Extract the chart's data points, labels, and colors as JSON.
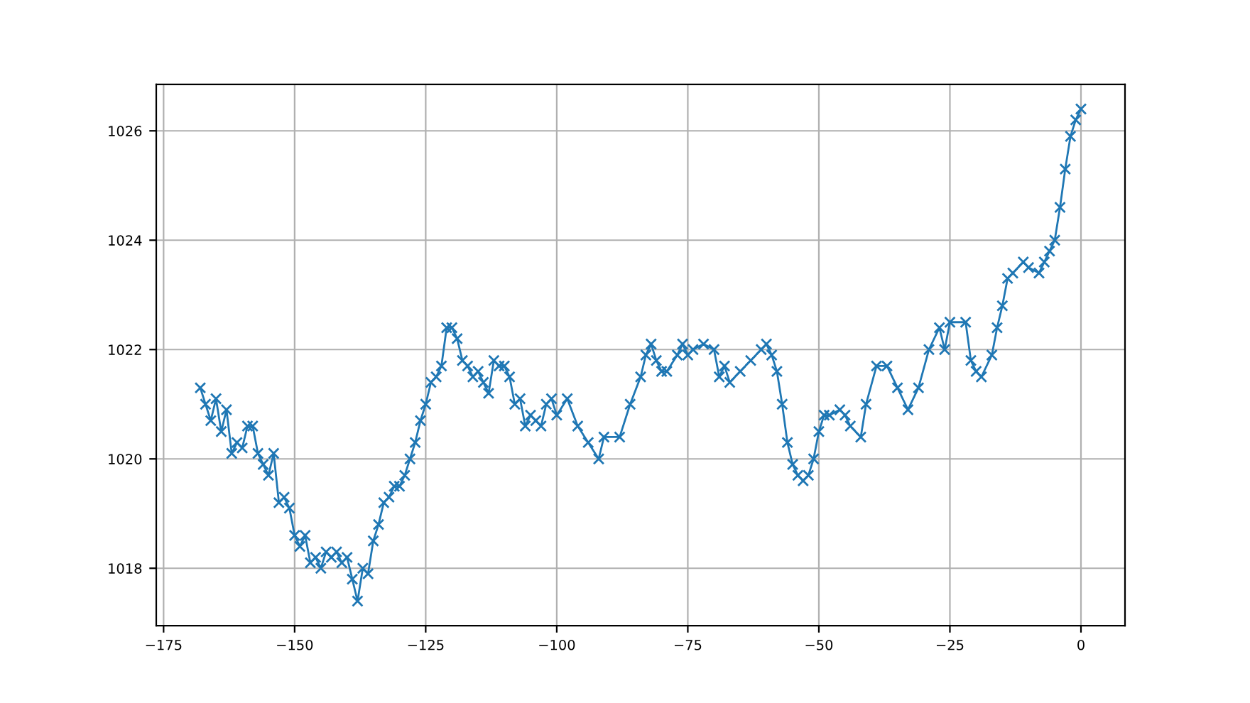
{
  "chart_data": {
    "type": "line",
    "series": [
      {
        "color": "#1f77b4",
        "x": [
          -168,
          -167,
          -166,
          -165,
          -164,
          -163,
          -162,
          -161,
          -160,
          -159,
          -158,
          -157,
          -156,
          -155,
          -154,
          -153,
          -152,
          -151,
          -150,
          -149,
          -148,
          -147,
          -146,
          -145,
          -144,
          -143,
          -142,
          -141,
          -140,
          -139,
          -138,
          -137,
          -136,
          -135,
          -134,
          -133,
          -132,
          -131,
          -130,
          -129,
          -128,
          -127,
          -126,
          -125,
          -124,
          -123,
          -122,
          -121,
          -120,
          -119,
          -118,
          -117,
          -116,
          -115,
          -114,
          -113,
          -112,
          -111,
          -110,
          -109,
          -108,
          -107,
          -106,
          -105,
          -104,
          -103,
          -102,
          -101,
          -100,
          -98,
          -96,
          -94,
          -92,
          -91,
          -88,
          -86,
          -84,
          -83,
          -82,
          -81,
          -80,
          -79,
          -77,
          -76,
          -75,
          -74,
          -72,
          -70,
          -69,
          -68,
          -67,
          -65,
          -63,
          -61,
          -60,
          -59,
          -58,
          -57,
          -56,
          -55,
          -54,
          -53,
          -52,
          -51,
          -50,
          -49,
          -48,
          -46,
          -45,
          -44,
          -42,
          -41,
          -39,
          -37,
          -35,
          -33,
          -31,
          -29,
          -27,
          -26,
          -25,
          -22,
          -21,
          -20,
          -19,
          -17,
          -16,
          -15,
          -14,
          -13,
          -11,
          -10,
          -8,
          -7,
          -6,
          -5,
          -4,
          -3,
          -2,
          -1,
          0
        ],
        "values": [
          1021.3,
          1021.0,
          1020.7,
          1021.1,
          1020.5,
          1020.9,
          1020.1,
          1020.3,
          1020.2,
          1020.6,
          1020.6,
          1020.1,
          1019.9,
          1019.7,
          1020.1,
          1019.2,
          1019.3,
          1019.1,
          1018.6,
          1018.4,
          1018.6,
          1018.1,
          1018.2,
          1018.0,
          1018.3,
          1018.2,
          1018.3,
          1018.1,
          1018.2,
          1017.8,
          1017.4,
          1018.0,
          1017.9,
          1018.5,
          1018.8,
          1019.2,
          1019.3,
          1019.5,
          1019.5,
          1019.7,
          1020.0,
          1020.3,
          1020.7,
          1021.0,
          1021.4,
          1021.5,
          1021.7,
          1022.4,
          1022.4,
          1022.2,
          1021.8,
          1021.7,
          1021.5,
          1021.6,
          1021.4,
          1021.2,
          1021.8,
          1021.7,
          1021.7,
          1021.5,
          1021.0,
          1021.1,
          1020.6,
          1020.8,
          1020.7,
          1020.6,
          1021.0,
          1021.1,
          1020.8,
          1021.1,
          1020.6,
          1020.3,
          1020.0,
          1020.4,
          1020.4,
          1021.0,
          1021.5,
          1021.9,
          1022.1,
          1021.8,
          1021.6,
          1021.6,
          1021.9,
          1022.1,
          1021.9,
          1022.0,
          1022.1,
          1022.0,
          1021.5,
          1021.7,
          1021.4,
          1021.6,
          1021.8,
          1022.0,
          1022.1,
          1021.9,
          1021.6,
          1021.0,
          1020.3,
          1019.9,
          1019.7,
          1019.6,
          1019.7,
          1020.0,
          1020.5,
          1020.8,
          1020.8,
          1020.9,
          1020.8,
          1020.6,
          1020.4,
          1021.0,
          1021.7,
          1021.7,
          1021.3,
          1020.9,
          1021.3,
          1022.0,
          1022.4,
          1022.0,
          1022.5,
          1022.5,
          1021.8,
          1021.6,
          1021.5,
          1021.9,
          1022.4,
          1022.8,
          1023.3,
          1023.4,
          1023.6,
          1023.5,
          1023.4,
          1023.6,
          1023.8,
          1024.0,
          1024.6,
          1025.3,
          1025.9,
          1026.2,
          1026.4
        ]
      }
    ],
    "xlim": [
      -176.4,
      8.4
    ],
    "xticks": [
      {
        "value": -175,
        "label": "−175"
      },
      {
        "value": -150,
        "label": "−150"
      },
      {
        "value": -125,
        "label": "−125"
      },
      {
        "value": -100,
        "label": "−100"
      },
      {
        "value": -75,
        "label": "−75"
      },
      {
        "value": -50,
        "label": "−50"
      },
      {
        "value": -25,
        "label": "−25"
      },
      0
    ],
    "ylim": [
      1016.95,
      1026.85
    ],
    "yticks": [
      1018,
      1020,
      1022,
      1024,
      1026
    ],
    "grid": true,
    "marker": "cross",
    "line_style": "solid"
  }
}
